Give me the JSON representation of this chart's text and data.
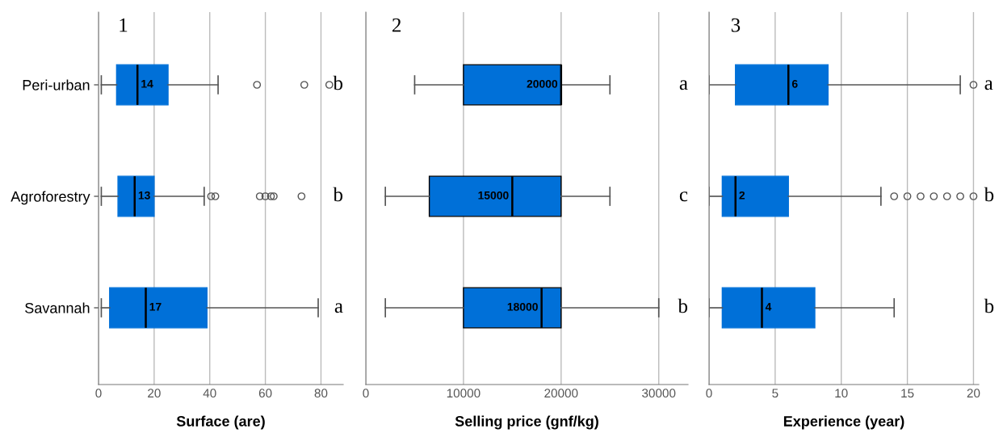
{
  "chart_data": [
    {
      "type": "box",
      "title": "1",
      "orientation": "horizontal",
      "categories": [
        "Peri-urban",
        "Agroforestry",
        "Savannah"
      ],
      "xlabel": "Surface (are)",
      "xlim": [
        0,
        88
      ],
      "xticks": [
        0,
        20,
        40,
        60,
        80
      ],
      "grid": "x",
      "value_labels": [
        "14",
        "13",
        "17"
      ],
      "color": "#0070d8",
      "boxes": [
        {
          "low": 1,
          "q1": 6.5,
          "median": 14,
          "q3": 25,
          "high": 43,
          "outliers": [
            57,
            74,
            83
          ]
        },
        {
          "low": 1,
          "q1": 7,
          "median": 13,
          "q3": 20,
          "high": 38,
          "outliers": [
            40.5,
            42,
            58,
            60,
            62,
            63,
            73
          ]
        },
        {
          "low": 1,
          "q1": 4,
          "median": 17,
          "q3": 39,
          "high": 79
        }
      ],
      "annotations": [
        "b",
        "b",
        "a"
      ]
    },
    {
      "type": "box",
      "title": "2",
      "orientation": "horizontal",
      "categories": [
        null,
        null,
        null
      ],
      "tick_labels": "x",
      "xlabel": "Selling price (gnf/kg)",
      "xlim": [
        0,
        33000
      ],
      "xticks": [
        0,
        10000,
        20000,
        30000
      ],
      "grid": "x",
      "value_labels": [
        "20000",
        "15000",
        "18000"
      ],
      "color": "#0070d8",
      "boxes": [
        {
          "low": 5000,
          "q1": 10000,
          "median": 20000,
          "q3": 20000,
          "high": 25000
        },
        {
          "low": 2000,
          "q1": 6500,
          "median": 15000,
          "q3": 20000,
          "high": 25000
        },
        {
          "low": 2000,
          "q1": 10000,
          "median": 18000,
          "q3": 20000,
          "high": 30000
        }
      ],
      "annotations": [
        "a",
        "c",
        "b"
      ]
    },
    {
      "type": "box",
      "title": "3",
      "orientation": "horizontal",
      "categories": [
        null,
        null,
        null
      ],
      "tick_labels": "x",
      "xlabel": "Experience (year)",
      "xlim": [
        0,
        20.4
      ],
      "xticks": [
        0,
        5,
        10,
        15,
        20
      ],
      "grid": "x",
      "value_labels": [
        "6",
        "2",
        "4"
      ],
      "color": "#0070d8",
      "boxes": [
        {
          "low": 0,
          "q1": 2,
          "median": 6,
          "q3": 9,
          "high": 19,
          "outliers": [
            20
          ]
        },
        {
          "low": 0,
          "q1": 1,
          "median": 2,
          "q3": 6,
          "high": 13,
          "outliers": [
            14,
            15,
            16,
            17,
            18,
            19,
            20
          ]
        },
        {
          "low": 0,
          "q1": 1,
          "median": 4,
          "q3": 8,
          "high": 14
        }
      ],
      "annotations": [
        "a",
        "b",
        "b"
      ]
    }
  ]
}
